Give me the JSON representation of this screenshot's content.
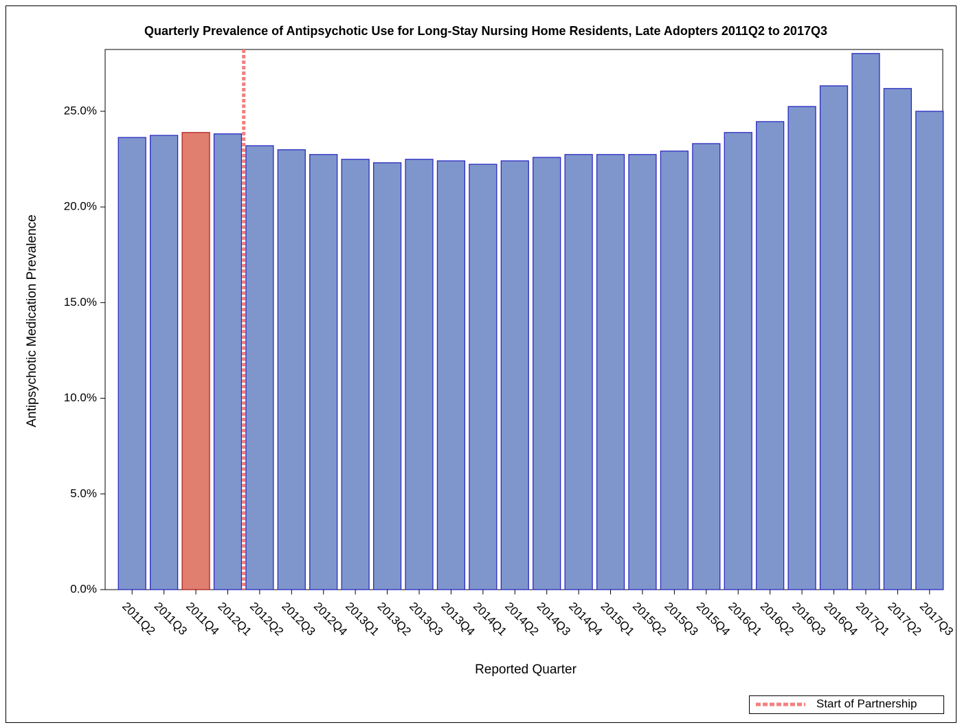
{
  "chart_data": {
    "type": "bar",
    "title": "Quarterly Prevalence of Antipsychotic Use for Long-Stay Nursing Home Residents, Late Adopters 2011Q2 to 2017Q3",
    "x_label": "Reported Quarter",
    "y_label": "Antipsychotic Medication Prevalence",
    "categories": [
      "2011Q2",
      "2011Q3",
      "2011Q4",
      "2012Q1",
      "2012Q2",
      "2012Q3",
      "2012Q4",
      "2013Q1",
      "2013Q2",
      "2013Q3",
      "2013Q4",
      "2014Q1",
      "2014Q2",
      "2014Q3",
      "2014Q4",
      "2015Q1",
      "2015Q2",
      "2015Q3",
      "2015Q4",
      "2016Q1",
      "2016Q2",
      "2016Q3",
      "2016Q4",
      "2017Q1",
      "2017Q2",
      "2017Q3"
    ],
    "values": [
      23.63,
      23.74,
      23.89,
      23.82,
      23.2,
      22.99,
      22.74,
      22.49,
      22.31,
      22.49,
      22.41,
      22.23,
      22.41,
      22.59,
      22.74,
      22.74,
      22.74,
      22.92,
      23.31,
      23.89,
      24.46,
      25.25,
      26.33,
      28.02,
      26.19,
      25.0
    ],
    "colors": [
      "#7f96cd",
      "#7f96cd",
      "#e07f70",
      "#7f96cd",
      "#7f96cd",
      "#7f96cd",
      "#7f96cd",
      "#7f96cd",
      "#7f96cd",
      "#7f96cd",
      "#7f96cd",
      "#7f96cd",
      "#7f96cd",
      "#7f96cd",
      "#7f96cd",
      "#7f96cd",
      "#7f96cd",
      "#7f96cd",
      "#7f96cd",
      "#7f96cd",
      "#7f96cd",
      "#7f96cd",
      "#7f96cd",
      "#7f96cd",
      "#7f96cd",
      "#7f96cd"
    ],
    "edge_colors": [
      "#2a2ac0",
      "#2a2ac0",
      "#b02020",
      "#2a2ac0",
      "#2a2ac0",
      "#2a2ac0",
      "#2a2ac0",
      "#2a2ac0",
      "#2a2ac0",
      "#2a2ac0",
      "#2a2ac0",
      "#2a2ac0",
      "#2a2ac0",
      "#2a2ac0",
      "#2a2ac0",
      "#2a2ac0",
      "#2a2ac0",
      "#2a2ac0",
      "#2a2ac0",
      "#2a2ac0",
      "#2a2ac0",
      "#2a2ac0",
      "#2a2ac0",
      "#2a2ac0",
      "#2a2ac0",
      "#2a2ac0"
    ],
    "ylim": [
      0,
      28.23
    ],
    "yticks": [
      {
        "value": 0,
        "label": "0.0%"
      },
      {
        "value": 5,
        "label": "5.0%"
      },
      {
        "value": 10,
        "label": "10.0%"
      },
      {
        "value": 15,
        "label": "15.0%"
      },
      {
        "value": 20,
        "label": "20.0%"
      },
      {
        "value": 25,
        "label": "25.0%"
      }
    ],
    "reference_line": {
      "label": "Start of Partnership",
      "x": 3.5,
      "color": "#f47f7f"
    },
    "legend": "bottom-right"
  }
}
